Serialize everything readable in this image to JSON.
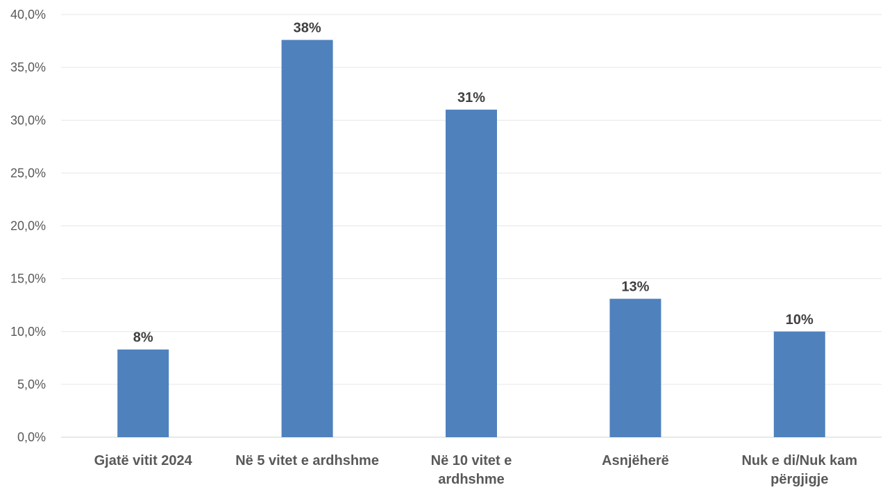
{
  "chart_data": {
    "type": "bar",
    "title": "",
    "xlabel": "",
    "ylabel": "",
    "categories": [
      [
        "Gjatë vitit 2024"
      ],
      [
        "Në 5 vitet e ardhshme"
      ],
      [
        "Në 10 vitet e",
        "ardhshme"
      ],
      [
        "Asnjëherë"
      ],
      [
        "Nuk e di/Nuk kam",
        "përgjigje"
      ]
    ],
    "values": [
      8.3,
      37.6,
      31.0,
      13.1,
      10.0
    ],
    "data_labels": [
      "8%",
      "38%",
      "31%",
      "13%",
      "10%"
    ],
    "ylim": [
      0,
      40
    ],
    "yticks": [
      0,
      5,
      10,
      15,
      20,
      25,
      30,
      35,
      40
    ],
    "ytick_labels": [
      "0,0%",
      "5,0%",
      "10,0%",
      "15,0%",
      "20,0%",
      "25,0%",
      "30,0%",
      "35,0%",
      "40,0%"
    ],
    "grid": true,
    "legend": "none",
    "bar_color": "#4f81bd"
  }
}
